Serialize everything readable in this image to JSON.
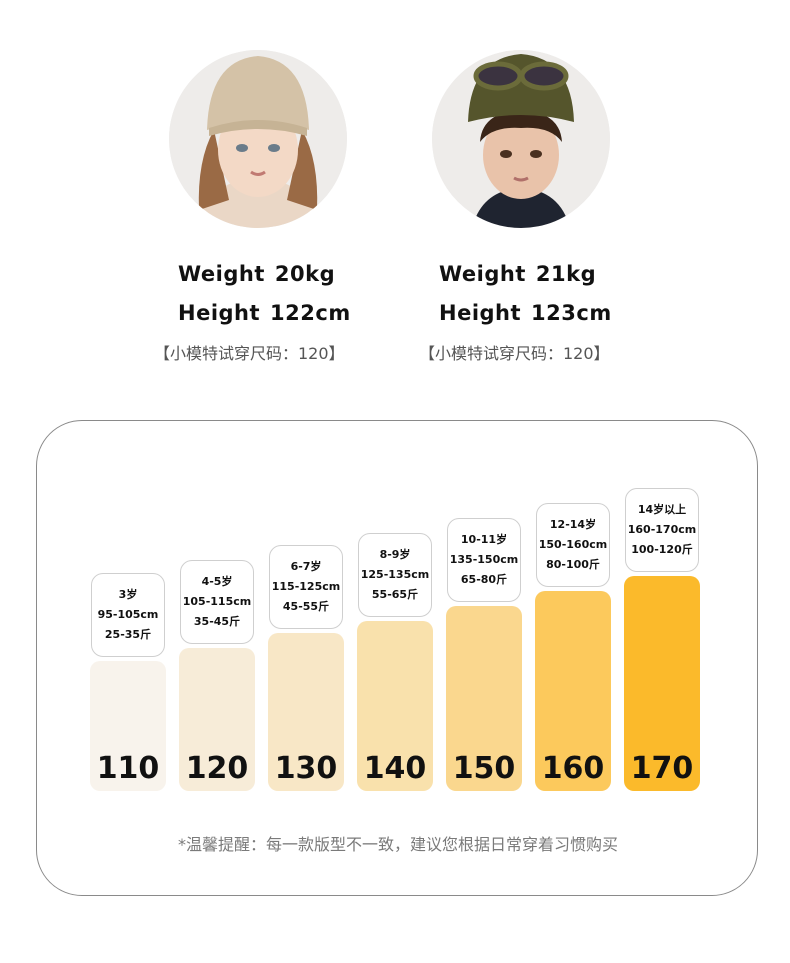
{
  "models": [
    {
      "weight_label": "Weight",
      "weight_value": "20kg",
      "height_label": "Height",
      "height_value": "122cm",
      "tried_size": "【小模特试穿尺码：120】",
      "colors": {
        "hat": "#d4c2a7",
        "hair": "#9a6a45"
      }
    },
    {
      "weight_label": "Weight",
      "weight_value": "21kg",
      "height_label": "Height",
      "height_value": "123cm",
      "tried_size": "【小模特试穿尺码：120】",
      "colors": {
        "hat": "#55552c",
        "hair": "#3a2518"
      }
    }
  ],
  "size_chart": {
    "columns": [
      {
        "size": "110",
        "age": "3岁",
        "height": "95-105cm",
        "weight": "25-35斤",
        "color": "#f8f3ec",
        "level": 0.52
      },
      {
        "size": "120",
        "age": "4-5岁",
        "height": "105-115cm",
        "weight": "35-45斤",
        "color": "#f7ecd8",
        "level": 0.57
      },
      {
        "size": "130",
        "age": "6-7岁",
        "height": "115-125cm",
        "weight": "45-55斤",
        "color": "#f8e7c6",
        "level": 0.63
      },
      {
        "size": "140",
        "age": "8-9岁",
        "height": "125-135cm",
        "weight": "55-65斤",
        "color": "#f9e1ac",
        "level": 0.68
      },
      {
        "size": "150",
        "age": "10-11岁",
        "height": "135-150cm",
        "weight": "65-80斤",
        "color": "#fad78e",
        "level": 0.74
      },
      {
        "size": "160",
        "age": "12-14岁",
        "height": "150-160cm",
        "weight": "80-100斤",
        "color": "#fcc95c",
        "level": 0.8
      },
      {
        "size": "170",
        "age": "14岁以上",
        "height": "160-170cm",
        "weight": "100-120斤",
        "color": "#fbba2b",
        "level": 0.86
      }
    ],
    "tip": "*温馨提醒：每一款版型不一致，建议您根据日常穿着习惯购买"
  }
}
